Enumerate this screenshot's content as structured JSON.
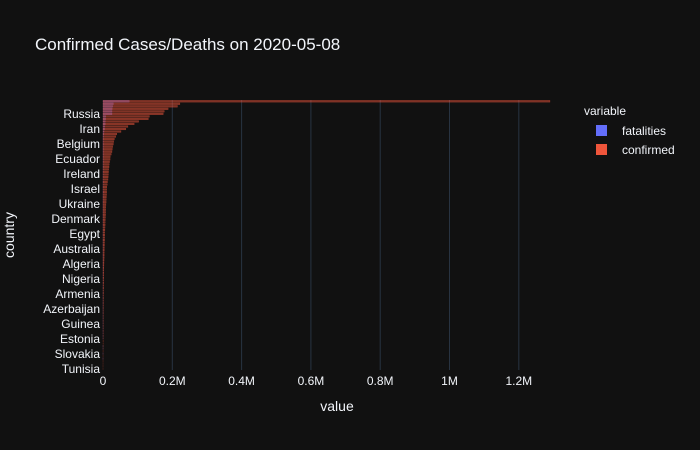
{
  "chart_data": {
    "type": "bar",
    "orientation": "horizontal",
    "barmode": "overlay",
    "title": "Confirmed Cases/Deaths on 2020-05-08",
    "xlabel": "value",
    "ylabel": "country",
    "xlim": [
      0,
      1290000
    ],
    "xticks": [
      0,
      200000,
      400000,
      600000,
      800000,
      1000000,
      1200000
    ],
    "xtick_labels": [
      "0",
      "0.2M",
      "0.4M",
      "0.6M",
      "0.8M",
      "1M",
      "1.2M"
    ],
    "grid": true,
    "legend": {
      "title": "variable",
      "position": "top-right"
    },
    "ytick_labels": [
      "Russia",
      "Iran",
      "Belgium",
      "Ecuador",
      "Ireland",
      "Israel",
      "Ukraine",
      "Denmark",
      "Egypt",
      "Australia",
      "Algeria",
      "Nigeria",
      "Armenia",
      "Azerbaijan",
      "Guinea",
      "Estonia",
      "Slovakia",
      "Tunisia"
    ],
    "series": [
      {
        "name": "fatalities",
        "color": "#636efa",
        "values": [
          76000,
          30000,
          28000,
          26500,
          26000,
          26000,
          8000,
          7600,
          6800,
          6500,
          5000,
          4500,
          3000,
          1700,
          1400,
          1000,
          900,
          900,
          850,
          800,
          800,
          700,
          450,
          400,
          600,
          300,
          650,
          250,
          200,
          250,
          150,
          120,
          350,
          100,
          100,
          100,
          500,
          100,
          200,
          80,
          110,
          30,
          60,
          70,
          50,
          20,
          100,
          20,
          40,
          30,
          10,
          15,
          30,
          10,
          25,
          100,
          10,
          30,
          10,
          10,
          5,
          20,
          8,
          10,
          20,
          5,
          8,
          6,
          3,
          10,
          4,
          9,
          2,
          5,
          2,
          8,
          1,
          3,
          2,
          1,
          1,
          10,
          2,
          1,
          1,
          1,
          1,
          2,
          5,
          1,
          1,
          1,
          3,
          1,
          1,
          0,
          0,
          1,
          1,
          0,
          1,
          0,
          1,
          0,
          0,
          0,
          0
        ]
      },
      {
        "name": "confirmed",
        "color": "#ef553b",
        "values": [
          1290000,
          222000,
          215000,
          188000,
          177000,
          174000,
          134000,
          131000,
          103000,
          90000,
          72000,
          66000,
          52000,
          40000,
          37000,
          33000,
          31000,
          30000,
          28000,
          27000,
          26000,
          24000,
          21000,
          20500,
          19000,
          18000,
          17500,
          16500,
          16000,
          15700,
          15000,
          14500,
          13000,
          12500,
          11000,
          10800,
          10500,
          10300,
          9800,
          9500,
          9000,
          8500,
          8000,
          7800,
          7700,
          7500,
          7200,
          6800,
          6500,
          6200,
          5900,
          5600,
          5300,
          5100,
          4900,
          4700,
          4500,
          4300,
          4100,
          3900,
          3700,
          3500,
          3300,
          3100,
          2900,
          2700,
          2500,
          2300,
          2200,
          2100,
          2000,
          1900,
          1800,
          1700,
          1600,
          1500,
          1400,
          1300,
          1250,
          1200,
          1150,
          1100,
          1050,
          1000,
          950,
          900,
          850,
          800,
          750,
          700,
          650,
          600,
          550,
          500,
          450,
          400,
          350,
          300,
          250,
          200,
          150,
          120,
          100,
          80,
          60,
          40,
          20
        ]
      }
    ]
  }
}
